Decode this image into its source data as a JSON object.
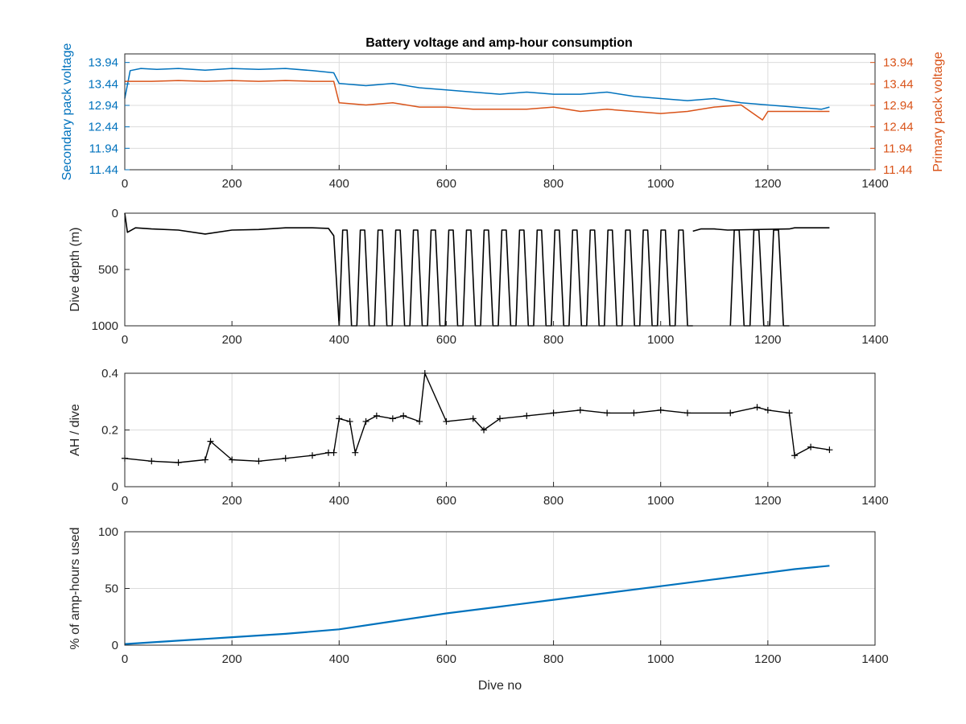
{
  "figure": {
    "title": "Battery voltage and amp-hour consumption",
    "colors": {
      "secondary": "#0072BD",
      "primary": "#D95319",
      "black": "#000000",
      "grid": "#dcdcdc"
    }
  },
  "chart_data": [
    {
      "type": "line",
      "title": "Battery voltage and amp-hour consumption",
      "xlabel": "",
      "ylabel_left": "Secondary pack voltage",
      "ylabel_right": "Primary pack voltage",
      "xlim": [
        0,
        1400
      ],
      "ylim": [
        11.44,
        14.14
      ],
      "xticks": [
        "0",
        "200",
        "400",
        "600",
        "800",
        "1000",
        "1200",
        "1400"
      ],
      "yticks": [
        "11.44",
        "11.94",
        "12.44",
        "12.94",
        "13.44",
        "13.94"
      ],
      "grid": true,
      "series": [
        {
          "name": "Secondary pack voltage",
          "axis": "left",
          "x": [
            0,
            10,
            30,
            60,
            100,
            150,
            200,
            250,
            300,
            350,
            390,
            400,
            450,
            500,
            550,
            600,
            650,
            700,
            750,
            800,
            850,
            900,
            950,
            1000,
            1050,
            1100,
            1150,
            1200,
            1250,
            1300,
            1315
          ],
          "y": [
            13.1,
            13.75,
            13.8,
            13.78,
            13.8,
            13.76,
            13.8,
            13.78,
            13.8,
            13.75,
            13.7,
            13.45,
            13.4,
            13.45,
            13.35,
            13.3,
            13.25,
            13.2,
            13.25,
            13.2,
            13.2,
            13.25,
            13.15,
            13.1,
            13.05,
            13.1,
            13.0,
            12.95,
            12.9,
            12.85,
            12.9
          ]
        },
        {
          "name": "Primary pack voltage",
          "axis": "right",
          "x": [
            0,
            50,
            100,
            150,
            200,
            250,
            300,
            350,
            390,
            400,
            450,
            500,
            550,
            600,
            650,
            700,
            750,
            800,
            850,
            900,
            950,
            1000,
            1050,
            1100,
            1150,
            1190,
            1200,
            1250,
            1300,
            1315
          ],
          "y": [
            13.5,
            13.5,
            13.52,
            13.5,
            13.52,
            13.5,
            13.52,
            13.5,
            13.5,
            13.0,
            12.95,
            13.0,
            12.9,
            12.9,
            12.85,
            12.85,
            12.85,
            12.9,
            12.8,
            12.85,
            12.8,
            12.75,
            12.8,
            12.9,
            12.95,
            12.6,
            12.8,
            12.8,
            12.8,
            12.8
          ]
        }
      ]
    },
    {
      "type": "line",
      "xlabel": "",
      "ylabel": "Dive depth (m)",
      "xlim": [
        0,
        1400
      ],
      "ylim": [
        0,
        1000
      ],
      "y_reversed": true,
      "xticks": [
        "0",
        "200",
        "400",
        "600",
        "800",
        "1000",
        "1200",
        "1400"
      ],
      "yticks": [
        "0",
        "500",
        "1000"
      ],
      "grid": false,
      "series": [
        {
          "x": [
            0,
            5,
            20,
            50,
            100,
            150,
            200,
            250,
            300,
            350,
            380,
            390,
            400,
            1060,
            1075,
            1100,
            1125,
            1240,
            1250,
            1280,
            1315
          ],
          "y": [
            0,
            170,
            130,
            140,
            150,
            185,
            150,
            145,
            130,
            130,
            135,
            200,
            1000,
            160,
            140,
            140,
            150,
            140,
            130,
            130,
            130
          ]
        }
      ],
      "dive_cycles_between": [
        [
          400,
          1060
        ],
        [
          1130,
          1240
        ]
      ],
      "dive_cycle_range_m": [
        150,
        1000
      ]
    },
    {
      "type": "scatter",
      "xlabel": "",
      "ylabel": "AH / dive",
      "xlim": [
        0,
        1400
      ],
      "ylim": [
        0,
        0.4
      ],
      "xticks": [
        "0",
        "200",
        "400",
        "600",
        "800",
        "1000",
        "1200",
        "1400"
      ],
      "yticks": [
        "0",
        "0.2",
        "0.4"
      ],
      "grid": true,
      "marker": "+",
      "series": [
        {
          "x": [
            0,
            50,
            100,
            150,
            160,
            200,
            250,
            300,
            350,
            380,
            390,
            400,
            420,
            430,
            450,
            470,
            500,
            520,
            550,
            560,
            600,
            650,
            670,
            700,
            750,
            800,
            850,
            900,
            950,
            1000,
            1050,
            1130,
            1180,
            1200,
            1240,
            1250,
            1280,
            1315
          ],
          "y": [
            0.1,
            0.09,
            0.085,
            0.095,
            0.16,
            0.095,
            0.09,
            0.1,
            0.11,
            0.12,
            0.12,
            0.24,
            0.23,
            0.12,
            0.23,
            0.25,
            0.24,
            0.25,
            0.23,
            0.4,
            0.23,
            0.24,
            0.2,
            0.24,
            0.25,
            0.26,
            0.27,
            0.26,
            0.26,
            0.27,
            0.26,
            0.26,
            0.28,
            0.27,
            0.26,
            0.11,
            0.14,
            0.13
          ]
        }
      ]
    },
    {
      "type": "line",
      "xlabel": "Dive no",
      "ylabel": "% of amp-hours used",
      "xlim": [
        0,
        1400
      ],
      "ylim": [
        0,
        100
      ],
      "xticks": [
        "0",
        "200",
        "400",
        "600",
        "800",
        "1000",
        "1200",
        "1400"
      ],
      "yticks": [
        "0",
        "50",
        "100"
      ],
      "grid": true,
      "series": [
        {
          "x": [
            0,
            100,
            200,
            300,
            400,
            500,
            600,
            700,
            800,
            900,
            1000,
            1100,
            1200,
            1250,
            1315
          ],
          "y": [
            1,
            4,
            7,
            10,
            14,
            21,
            28,
            34,
            40,
            46,
            52,
            58,
            64,
            67,
            70
          ]
        }
      ]
    }
  ]
}
